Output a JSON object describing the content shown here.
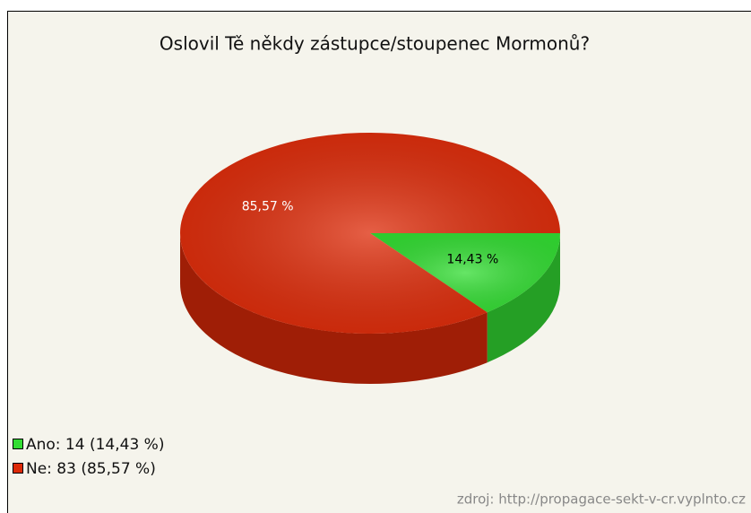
{
  "chart_data": {
    "type": "pie",
    "title": "Oslovil Tě někdy zástupce/stoupenec Mormonů?",
    "values": [
      14.43,
      85.57
    ],
    "value_labels": [
      "14,43 %",
      "85,57 %"
    ],
    "colors": [
      "#33dd33",
      "#dd2a08"
    ],
    "legend": [
      "Ano: 14 (14,43 %)",
      "Ne: 83 (85,57 %)"
    ],
    "source": "zdroj: http://propagace-sekt-v-cr.vyplnto.cz"
  }
}
